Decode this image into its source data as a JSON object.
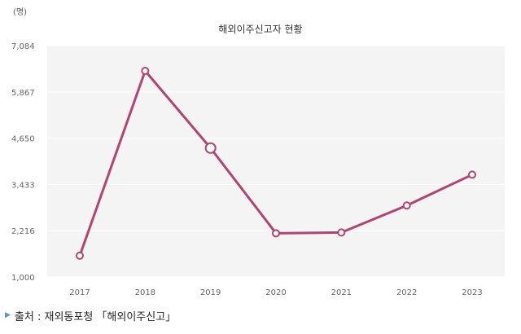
{
  "chart_data": {
    "type": "line",
    "title": "해외이주신고자 현황",
    "unit_label": "(명)",
    "x": [
      "2017",
      "2018",
      "2019",
      "2020",
      "2021",
      "2022",
      "2023"
    ],
    "series": [
      {
        "values": [
          1560,
          6420,
          4390,
          2150,
          2170,
          2880,
          3690
        ]
      }
    ],
    "yticks": [
      "1,000",
      "2,216",
      "3,433",
      "4,650",
      "5,867",
      "7,084"
    ],
    "ylim": [
      1000,
      7084
    ],
    "grid": "horizontal",
    "line_color": "#b5426f",
    "plot_background": "#f4f4f4"
  },
  "source": {
    "text": "출처 : 재외동포청 「해외이주신고」"
  }
}
